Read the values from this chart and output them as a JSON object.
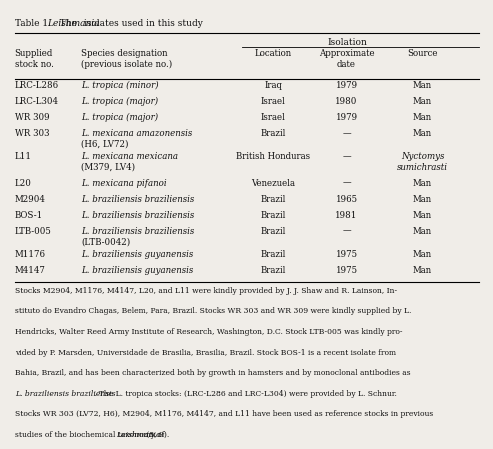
{
  "title": "Table 1.   The Leishmania isolates used in this study",
  "col_headers": [
    [
      "Supplied\nstock no.",
      "Species designation\n(previous isolate no.)",
      "Isolation",
      "",
      ""
    ],
    [
      "",
      "",
      "Location",
      "Approximate\ndate",
      "Source"
    ]
  ],
  "rows": [
    [
      "LRC-L286",
      "L. tropica (minor)",
      "Iraq",
      "1979",
      "Man"
    ],
    [
      "LRC-L304",
      "L. tropica (major)",
      "Israel",
      "1980",
      "Man"
    ],
    [
      "WR 309",
      "L. tropica (major)",
      "Israel",
      "1979",
      "Man"
    ],
    [
      "WR 303",
      "L. mexicana amazonensis\n(H6, LV72)",
      "Brazil",
      "—",
      "Man"
    ],
    [
      "L11",
      "L. mexicana mexicana\n(M379, LV4)",
      "British Honduras",
      "—",
      "Nyctomys\nsumichrasti"
    ],
    [
      "L20",
      "L. mexicana pifanoi",
      "Venezuela",
      "—",
      "Man"
    ],
    [
      "M2904",
      "L. braziliensis braziliensis",
      "Brazil",
      "1965",
      "Man"
    ],
    [
      "BOS-1",
      "L. braziliensis braziliensis",
      "Brazil",
      "1981",
      "Man"
    ],
    [
      "LTB-005",
      "L. braziliensis braziliensis\n(LTB-0042)",
      "Brazil",
      "—",
      "Man"
    ],
    [
      "M1176",
      "L. braziliensis guyanensis",
      "Brazil",
      "1975",
      "Man"
    ],
    [
      "M4147",
      "L. braziliensis guyanensis",
      "Brazil",
      "1975",
      "Man"
    ]
  ],
  "footnote": "Stocks M2904, M1176, M4147, L20, and L11 were kindly provided by J. J. Shaw and R. Lainson, In-\nstituto do Evandro Chagas, Belem, Para, Brazil. Stocks WR 303 and WR 309 were kindly supplied by L.\nHendricks, Walter Reed Army Institute of Research, Washington, D.C. Stock LTB-005 was kindly pro-\nvided by P. Marsden, Universidade de Brasilia, Brasilia, Brazil. Stock BOS-1 is a recent isolate from\nBahia, Brazil, and has been characterized both by growth in hamsters and by monoclonal antibodies as\nL. braziliensis braziliensis. The L. tropica stocks: (LRC-L286 and LRC-L304) were provided by L. Schnur.\nStocks WR 303 (LV72, H6), M2904, M1176, M4147, and L11 have been used as reference stocks in previous\nstudies of the biochemical taxonomy of Leishmania (5, 9).",
  "bg_color": "#f0ede8",
  "text_color": "#111111"
}
